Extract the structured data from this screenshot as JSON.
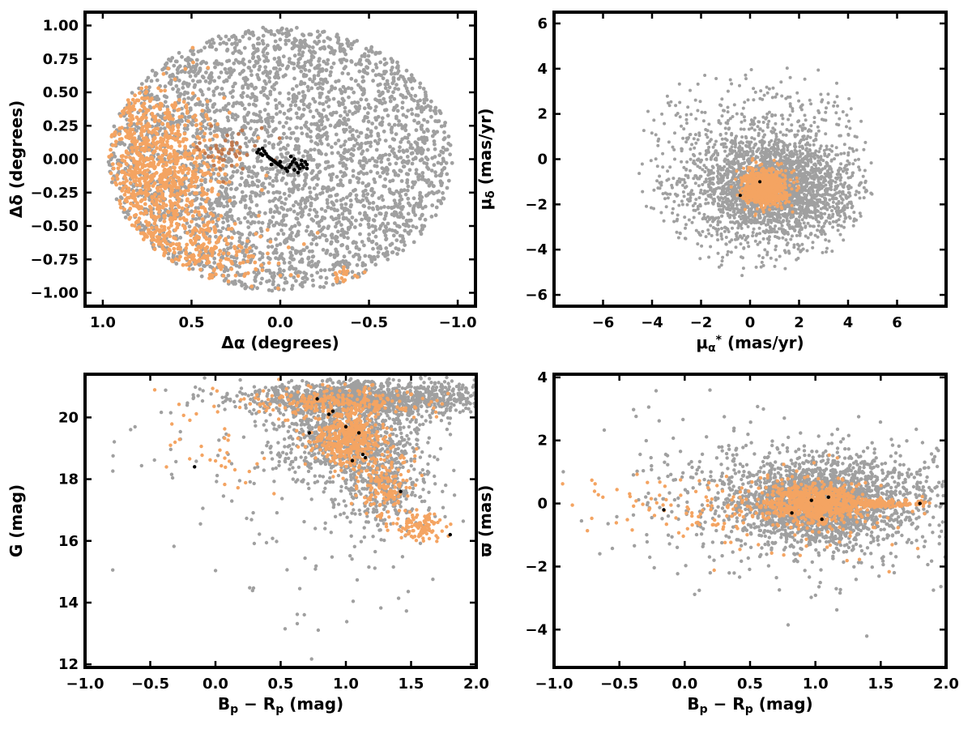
{
  "colors": {
    "field": "#a0a0a0",
    "members": "#f4a462",
    "members_dark": "#c07a50",
    "core": "#000000"
  },
  "chart_data": [
    {
      "id": "sky",
      "type": "scatter",
      "xlabel_html": "Δα (degrees)",
      "ylabel_html": "Δδ (degrees)",
      "xlim": [
        1.1,
        -1.1
      ],
      "ylim": [
        -1.1,
        1.1
      ],
      "xticks": [
        1.0,
        0.5,
        0.0,
        -0.5,
        -1.0
      ],
      "xtick_labels": [
        "1.0",
        "0.5",
        "0.0",
        "−0.5",
        "−1.0"
      ],
      "yticks": [
        1.0,
        0.75,
        0.5,
        0.25,
        0.0,
        -0.25,
        -0.5,
        -0.75,
        -1.0
      ],
      "ytick_labels": [
        "1.00",
        "0.75",
        "0.50",
        "0.25",
        "0.00",
        "−0.25",
        "−0.50",
        "−0.75",
        "−1.00"
      ],
      "grid": false,
      "series": [
        {
          "role": "field",
          "color": "#a0a0a0",
          "shape": "disk",
          "center": [
            0.0,
            0.0
          ],
          "radius": [
            0.97,
            0.99
          ],
          "count": 3200
        },
        {
          "role": "members",
          "color": "#f4a462",
          "regions": [
            {
              "center": [
                0.72,
                -0.32
              ],
              "spread": [
                0.2,
                0.42
              ],
              "count": 900
            },
            {
              "center": [
                0.82,
                0.25
              ],
              "spread": [
                0.08,
                0.22
              ],
              "count": 120
            },
            {
              "center": [
                0.62,
                0.0
              ],
              "spread": [
                0.18,
                0.2
              ],
              "count": 250
            },
            {
              "center": [
                0.45,
                -0.75
              ],
              "spread": [
                0.22,
                0.12
              ],
              "count": 200
            },
            {
              "center": [
                -0.35,
                -0.88
              ],
              "spread": [
                0.05,
                0.03
              ],
              "count": 25
            }
          ]
        },
        {
          "role": "members_dark",
          "color": "#c07a50",
          "regions": [
            {
              "center": [
                0.3,
                0.07
              ],
              "spread": [
                0.1,
                0.07
              ],
              "count": 40
            }
          ]
        },
        {
          "role": "core",
          "color": "#000000",
          "points": [
            [
              0.13,
              0.05
            ],
            [
              0.11,
              0.04
            ],
            [
              0.1,
              0.03
            ],
            [
              0.09,
              0.06
            ],
            [
              0.08,
              0.04
            ],
            [
              0.07,
              0.02
            ],
            [
              0.06,
              0.01
            ],
            [
              0.05,
              0.0
            ],
            [
              0.04,
              -0.01
            ],
            [
              0.03,
              -0.02
            ],
            [
              0.02,
              -0.03
            ],
            [
              0.01,
              -0.04
            ],
            [
              0.0,
              -0.05
            ],
            [
              -0.01,
              -0.06
            ],
            [
              -0.03,
              -0.07
            ],
            [
              -0.05,
              -0.06
            ],
            [
              -0.06,
              -0.04
            ],
            [
              -0.07,
              -0.02
            ],
            [
              -0.08,
              0.0
            ],
            [
              -0.09,
              -0.03
            ],
            [
              -0.1,
              -0.05
            ],
            [
              -0.11,
              -0.07
            ],
            [
              -0.12,
              -0.04
            ],
            [
              -0.13,
              -0.06
            ],
            [
              -0.14,
              -0.02
            ],
            [
              -0.15,
              -0.04
            ],
            [
              0.12,
              0.07
            ],
            [
              0.1,
              0.08
            ],
            [
              -0.08,
              -0.08
            ],
            [
              -0.1,
              -0.1
            ],
            [
              -0.12,
              -0.01
            ],
            [
              -0.06,
              0.02
            ],
            [
              0.0,
              -0.02
            ],
            [
              0.05,
              -0.04
            ],
            [
              -0.04,
              -0.09
            ],
            [
              -0.15,
              -0.07
            ]
          ]
        }
      ]
    },
    {
      "id": "proper-motion",
      "type": "scatter",
      "xlabel_html": "μα* (mas/yr)",
      "ylabel_html": "μδ (mas/yr)",
      "xlim": [
        -8,
        8
      ],
      "ylim": [
        -6.5,
        6.5
      ],
      "xticks": [
        -6,
        -4,
        -2,
        0,
        2,
        4,
        6
      ],
      "xtick_labels": [
        "−6",
        "−4",
        "−2",
        "0",
        "2",
        "4",
        "6"
      ],
      "yticks": [
        -6,
        -4,
        -2,
        0,
        2,
        4,
        6
      ],
      "ytick_labels": [
        "−6",
        "−4",
        "−2",
        "0",
        "2",
        "4",
        "6"
      ],
      "grid": false,
      "series": [
        {
          "role": "field",
          "color": "#a0a0a0",
          "regions": [
            {
              "center": [
                1.0,
                -1.3
              ],
              "spread": [
                1.5,
                1.1
              ],
              "count": 2200,
              "clip_radius": 4.6
            },
            {
              "center": [
                0.5,
                -0.5
              ],
              "spread": [
                2.6,
                2.2
              ],
              "count": 900,
              "clip_radius": 5.0
            }
          ]
        },
        {
          "role": "members",
          "color": "#f4a462",
          "regions": [
            {
              "center": [
                0.6,
                -1.25
              ],
              "spread": [
                0.42,
                0.38
              ],
              "count": 900
            }
          ]
        },
        {
          "role": "core",
          "color": "#000000",
          "points": [
            [
              -0.4,
              -1.6
            ],
            [
              0.4,
              -1.0
            ]
          ]
        }
      ]
    },
    {
      "id": "cmd",
      "type": "scatter",
      "xlabel_html": "Bp − Rp (mag)",
      "ylabel_html": "G (mag)",
      "xlim": [
        -1.0,
        2.0
      ],
      "ylim": [
        11.9,
        21.4
      ],
      "y_inverted": false,
      "xticks": [
        -1.0,
        -0.5,
        0.0,
        0.5,
        1.0,
        1.5,
        2.0
      ],
      "xtick_labels": [
        "−1.0",
        "−0.5",
        "0.0",
        "0.5",
        "1.0",
        "1.5",
        "2.0"
      ],
      "yticks": [
        12,
        14,
        16,
        18,
        20
      ],
      "ytick_labels": [
        "12",
        "14",
        "16",
        "18",
        "20"
      ],
      "grid": false,
      "series": [
        {
          "role": "field",
          "color": "#a0a0a0",
          "regions": [
            {
              "center": [
                1.2,
                20.6
              ],
              "spread": [
                0.5,
                0.28
              ],
              "count": 1300
            },
            {
              "center": [
                1.0,
                19.3
              ],
              "spread": [
                0.28,
                0.7
              ],
              "count": 800
            },
            {
              "center": [
                1.3,
                17.8
              ],
              "spread": [
                0.18,
                0.7
              ],
              "count": 350
            },
            {
              "center": [
                1.0,
                15.5
              ],
              "spread": [
                0.45,
                1.2
              ],
              "count": 60
            },
            {
              "center": [
                0.0,
                18.5
              ],
              "spread": [
                0.5,
                1.5
              ],
              "count": 40
            }
          ]
        },
        {
          "role": "members",
          "color": "#f4a462",
          "regions": [
            {
              "center": [
                0.95,
                20.5
              ],
              "spread": [
                0.3,
                0.25
              ],
              "count": 260
            },
            {
              "center": [
                1.02,
                19.3
              ],
              "spread": [
                0.13,
                0.45
              ],
              "count": 420
            },
            {
              "center": [
                1.3,
                17.8
              ],
              "spread": [
                0.1,
                0.5
              ],
              "count": 160
            },
            {
              "center": [
                1.55,
                16.5
              ],
              "spread": [
                0.1,
                0.25
              ],
              "count": 110
            },
            {
              "center": [
                0.0,
                19.3
              ],
              "spread": [
                0.25,
                0.8
              ],
              "count": 40
            }
          ]
        },
        {
          "role": "core",
          "color": "#000000",
          "points": [
            [
              0.78,
              20.6
            ],
            [
              0.87,
              20.1
            ],
            [
              0.9,
              20.2
            ],
            [
              1.1,
              19.5
            ],
            [
              1.13,
              18.8
            ],
            [
              1.05,
              18.6
            ],
            [
              1.42,
              17.6
            ],
            [
              1.8,
              16.2
            ],
            [
              -0.16,
              18.4
            ],
            [
              0.72,
              19.5
            ],
            [
              1.0,
              19.7
            ],
            [
              1.15,
              18.7
            ]
          ]
        }
      ]
    },
    {
      "id": "parallax",
      "type": "scatter",
      "xlabel_html": "Bp − Rp (mag)",
      "ylabel_html": "ϖ (mas)",
      "xlim": [
        -1.0,
        2.0
      ],
      "ylim": [
        -5.2,
        4.1
      ],
      "xticks": [
        -1.0,
        -0.5,
        0.0,
        0.5,
        1.0,
        1.5,
        2.0
      ],
      "xtick_labels": [
        "−1.0",
        "−0.5",
        "0.0",
        "0.5",
        "1.0",
        "1.5",
        "2.0"
      ],
      "yticks": [
        -4,
        -2,
        0,
        2,
        4
      ],
      "ytick_labels": [
        "−4",
        "−2",
        "0",
        "2",
        "4"
      ],
      "grid": false,
      "series": [
        {
          "role": "field",
          "color": "#a0a0a0",
          "regions": [
            {
              "center": [
                1.0,
                0.0
              ],
              "spread": [
                0.28,
                0.6
              ],
              "count": 1600
            },
            {
              "center": [
                1.2,
                0.1
              ],
              "spread": [
                0.6,
                0.9
              ],
              "count": 900
            },
            {
              "center": [
                0.6,
                0.0
              ],
              "spread": [
                0.6,
                1.4
              ],
              "count": 250
            }
          ]
        },
        {
          "role": "members",
          "color": "#f4a462",
          "regions": [
            {
              "center": [
                1.0,
                0.0
              ],
              "spread": [
                0.18,
                0.28
              ],
              "count": 700
            },
            {
              "center": [
                1.5,
                0.0
              ],
              "spread": [
                0.18,
                0.06
              ],
              "count": 150
            },
            {
              "center": [
                0.2,
                -0.1
              ],
              "spread": [
                0.45,
                0.45
              ],
              "count": 120
            },
            {
              "center": [
                1.0,
                -0.3
              ],
              "spread": [
                0.5,
                0.9
              ],
              "count": 100
            }
          ]
        },
        {
          "role": "core",
          "color": "#000000",
          "points": [
            [
              -0.16,
              -0.2
            ],
            [
              1.8,
              0.0
            ],
            [
              1.05,
              -0.5
            ],
            [
              0.97,
              0.1
            ],
            [
              0.82,
              -0.3
            ],
            [
              1.1,
              0.2
            ]
          ]
        }
      ]
    }
  ]
}
